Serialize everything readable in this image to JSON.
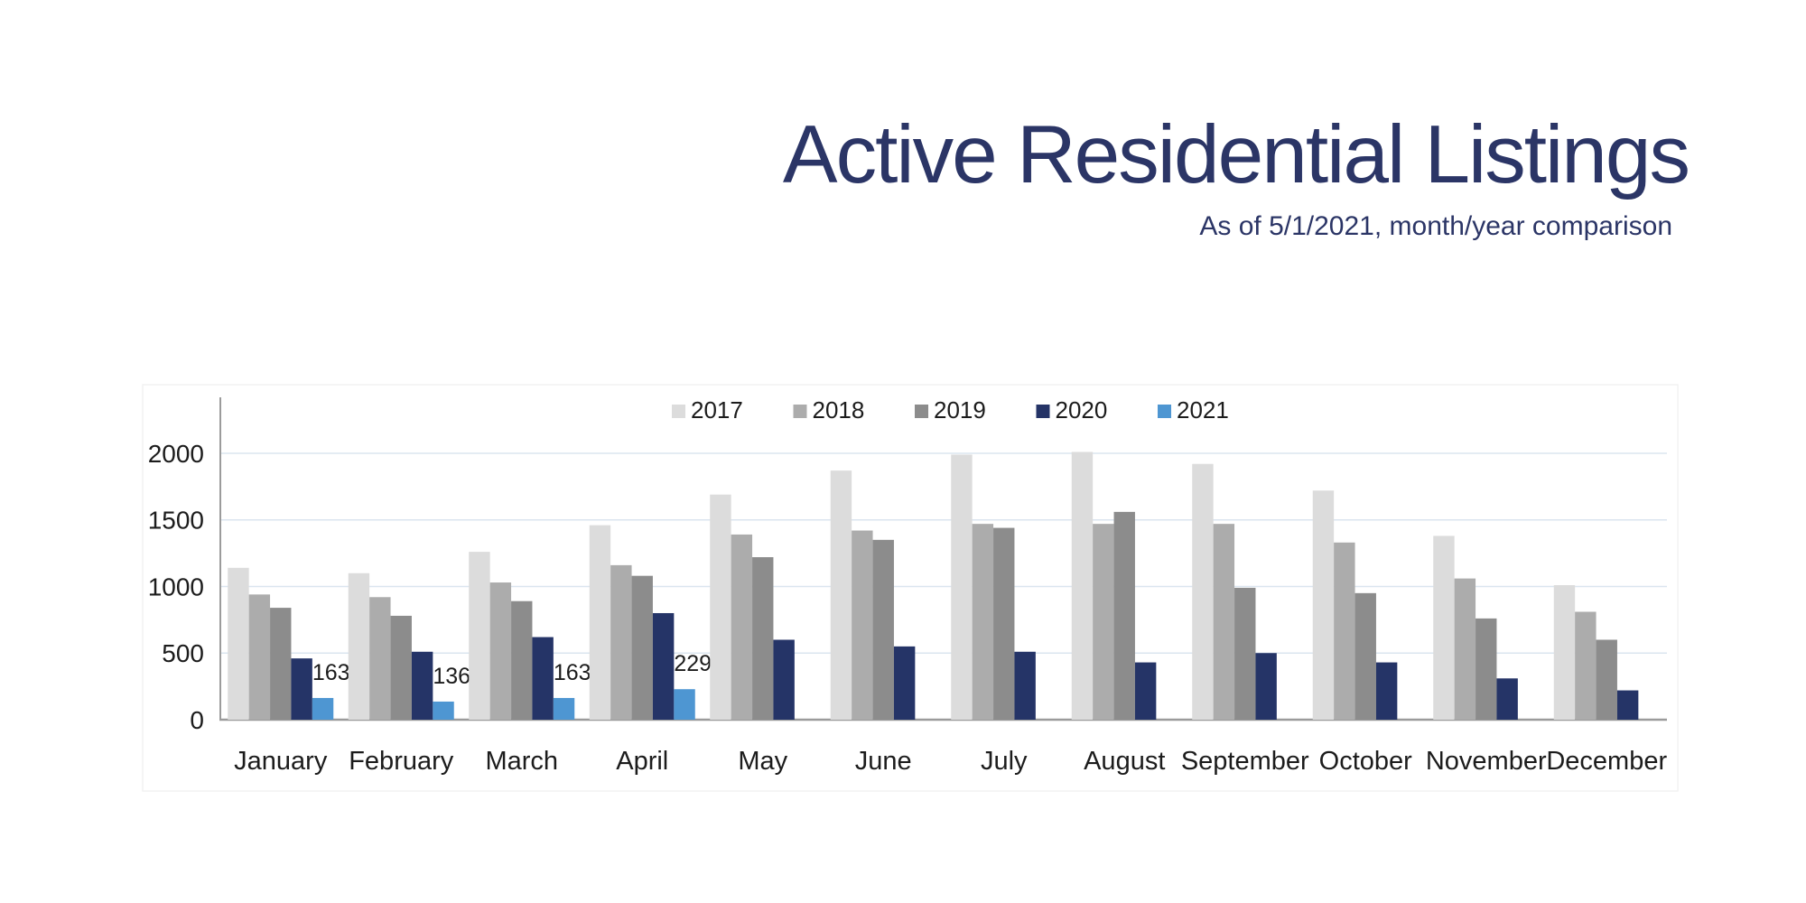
{
  "slide": {
    "title": "Active Residential Listings",
    "subtitle": "As of 5/1/2021, month/year comparison"
  },
  "chart_data": {
    "type": "bar",
    "title": "Active Residential Listings",
    "subtitle": "As of 5/1/2021, month/year comparison",
    "categories": [
      "January",
      "February",
      "March",
      "April",
      "May",
      "June",
      "July",
      "August",
      "September",
      "October",
      "November",
      "December"
    ],
    "series": [
      {
        "name": "2017",
        "color": "#dcdcdc",
        "values": [
          1140,
          1100,
          1260,
          1460,
          1690,
          1870,
          1990,
          2010,
          1920,
          1720,
          1380,
          1010
        ],
        "show_labels": false
      },
      {
        "name": "2018",
        "color": "#acacac",
        "values": [
          940,
          920,
          1030,
          1160,
          1390,
          1420,
          1470,
          1470,
          1470,
          1330,
          1060,
          810
        ],
        "show_labels": false
      },
      {
        "name": "2019",
        "color": "#8c8c8c",
        "values": [
          840,
          780,
          890,
          1080,
          1220,
          1350,
          1440,
          1560,
          990,
          950,
          760,
          600
        ],
        "show_labels": false
      },
      {
        "name": "2020",
        "color": "#253467",
        "values": [
          460,
          510,
          620,
          800,
          600,
          550,
          510,
          430,
          500,
          430,
          310,
          220
        ],
        "show_labels": false
      },
      {
        "name": "2021",
        "color": "#4e96d2",
        "values": [
          163,
          136,
          163,
          229,
          null,
          null,
          null,
          null,
          null,
          null,
          null,
          null
        ],
        "show_labels": true
      }
    ],
    "shown_data_labels": [
      "163",
      "136",
      "163",
      "229"
    ],
    "y_ticks": [
      0,
      500,
      1000,
      1500,
      2000
    ],
    "ylim": [
      0,
      2420
    ],
    "grid": true,
    "legend_position": "top-center",
    "legend_entries": [
      "2017",
      "2018",
      "2019",
      "2020",
      "2021"
    ],
    "xlabel": "",
    "ylabel": ""
  },
  "colors": {
    "title_navy": "#2b3566",
    "axis_line": "#9b9b9b",
    "gridline": "#dbe5ef",
    "tick_text": "#1c1c1c",
    "frame": "#f2f2f2"
  }
}
